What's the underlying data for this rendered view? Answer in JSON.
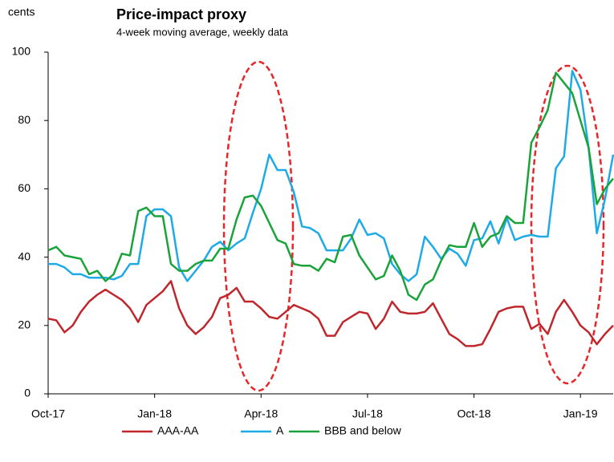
{
  "chart_data": {
    "type": "line",
    "title": "Price-impact proxy",
    "subtitle": "4-week moving average, weekly data",
    "y_label": "cents",
    "categories": [
      "Oct-17",
      null,
      null,
      null,
      null,
      null,
      null,
      null,
      null,
      null,
      null,
      null,
      null,
      "Jan-18",
      null,
      null,
      null,
      null,
      null,
      null,
      null,
      null,
      null,
      null,
      null,
      null,
      "Apr-18",
      null,
      null,
      null,
      null,
      null,
      null,
      null,
      null,
      null,
      null,
      null,
      null,
      "Jul-18",
      null,
      null,
      null,
      null,
      null,
      null,
      null,
      null,
      null,
      null,
      null,
      null,
      "Oct-18",
      null,
      null,
      null,
      null,
      null,
      null,
      null,
      null,
      null,
      null,
      null,
      null,
      "Jan-19",
      null,
      null,
      null,
      null
    ],
    "series": [
      {
        "name": "AAA-AA",
        "color": "#c0272d",
        "values": [
          22,
          21.5,
          18,
          20,
          24,
          27,
          29,
          30.5,
          29,
          27.5,
          25,
          21,
          26,
          28,
          30,
          33,
          25,
          20,
          17.5,
          19.5,
          22.5,
          28,
          29,
          31,
          27,
          27,
          25,
          22.5,
          22,
          24,
          26,
          25,
          24,
          22,
          17,
          17,
          21,
          22.5,
          24,
          23.5,
          19,
          22,
          27,
          24,
          23.5,
          23.5,
          24,
          26.5,
          22,
          17.5,
          16,
          14,
          14,
          14.5,
          19,
          24,
          25,
          25.5,
          25.5,
          19,
          20.5,
          17.5,
          24,
          27.5,
          24,
          20,
          18,
          14.5,
          17.5,
          20
        ]
      },
      {
        "name": "A",
        "color": "#1eaae7",
        "values": [
          38,
          38,
          37,
          35,
          35,
          34,
          34,
          34,
          33.5,
          34.5,
          38,
          38,
          52,
          54,
          54,
          52,
          37,
          33,
          36,
          39,
          43,
          44.5,
          42,
          44,
          45.5,
          53,
          60,
          70,
          65.5,
          65.5,
          59,
          49,
          48.5,
          47,
          42,
          42,
          42,
          45.5,
          51,
          46.5,
          47,
          45.5,
          38,
          35,
          33,
          35,
          46,
          43,
          39.5,
          42.5,
          41,
          37.5,
          45,
          45.5,
          50.5,
          44,
          51.5,
          45,
          46,
          46.5,
          46,
          46,
          66,
          69.5,
          94.5,
          89,
          72,
          47,
          57,
          70
        ]
      },
      {
        "name": "BBB and below",
        "color": "#1aa33a",
        "values": [
          42,
          43,
          40.5,
          40,
          39.5,
          35,
          36,
          33,
          35,
          41,
          40.5,
          53.5,
          54.5,
          52,
          52,
          38,
          36,
          36,
          38,
          39,
          39,
          42.5,
          42.5,
          51,
          57.5,
          58,
          55,
          50,
          45,
          44,
          38,
          37.5,
          37.5,
          36,
          39.5,
          38.5,
          46,
          46.5,
          40.5,
          37,
          33.5,
          34.5,
          40.5,
          36,
          29,
          27.5,
          32,
          33.5,
          39,
          43.5,
          43,
          43,
          50,
          43,
          46,
          47,
          52,
          50,
          50,
          73.5,
          78,
          83,
          94,
          91,
          88,
          80,
          72,
          55.5,
          60,
          63
        ]
      }
    ],
    "ylim": [
      0,
      100
    ],
    "yticks": [
      0,
      20,
      40,
      60,
      80,
      100
    ],
    "grid": false
  }
}
